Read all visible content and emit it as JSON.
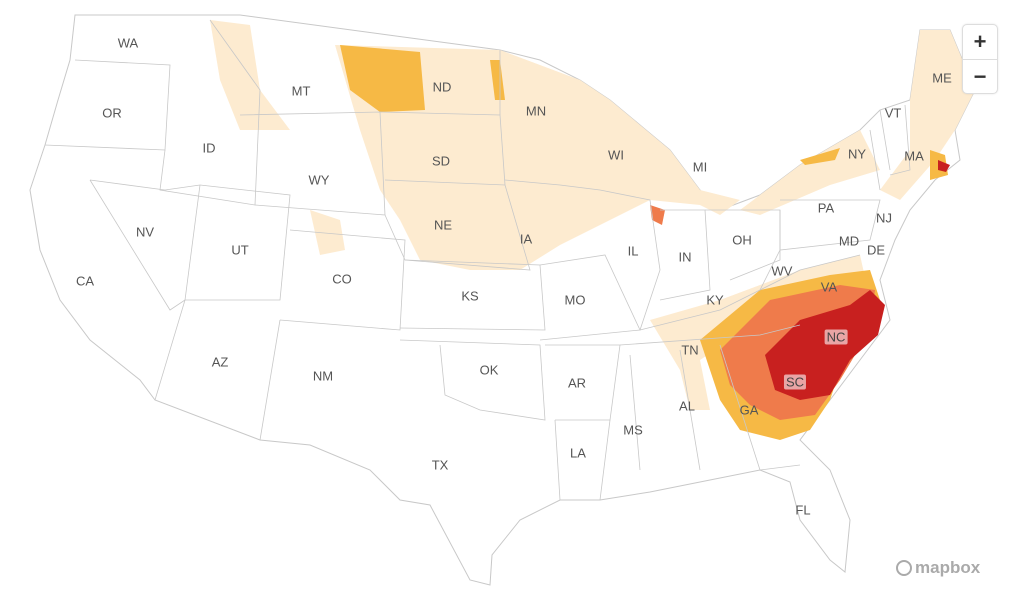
{
  "map": {
    "states": [
      "WA",
      "OR",
      "ID",
      "MT",
      "WY",
      "NV",
      "UT",
      "CA",
      "CO",
      "AZ",
      "NM",
      "ND",
      "SD",
      "NE",
      "KS",
      "OK",
      "TX",
      "MN",
      "IA",
      "MO",
      "AR",
      "LA",
      "WI",
      "IL",
      "MI",
      "IN",
      "OH",
      "KY",
      "TN",
      "MS",
      "AL",
      "GA",
      "FL",
      "SC",
      "NC",
      "VA",
      "WV",
      "PA",
      "NY",
      "VT",
      "ME",
      "MA",
      "NJ",
      "MD",
      "DE"
    ],
    "highlighted_states": [
      "NC",
      "SC"
    ],
    "colors": {
      "level1": "#fdebd0",
      "level2": "#f6b945",
      "level3": "#ef7b4b",
      "level4": "#c8201f",
      "border": "#c8c8c8"
    }
  },
  "controls": {
    "zoom_in": "+",
    "zoom_out": "−"
  },
  "attribution": {
    "logo_text": "mapbox",
    "icon": "mapbox-logo-icon"
  }
}
